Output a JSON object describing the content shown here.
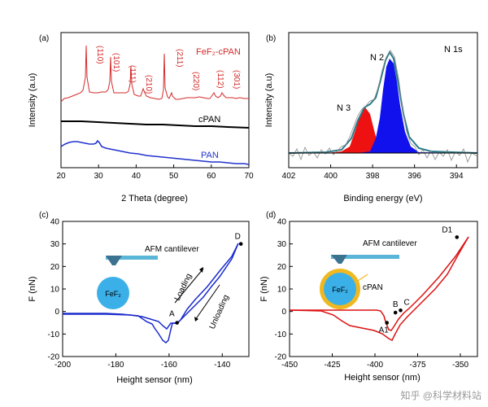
{
  "watermark": {
    "text": "知乎 @科学材料站"
  },
  "chart_data": [
    {
      "panel": "(a)",
      "type": "line",
      "xlabel": "2 Theta (degree)",
      "ylabel": "Intensity (a.u)",
      "xlim": [
        20,
        70
      ],
      "xticks": [
        "20",
        "30",
        "40",
        "50",
        "60",
        "70"
      ],
      "series": [
        {
          "name": "FeF2-cPAN",
          "label": "FeF₂-cPAN",
          "color": "#d42a2a"
        },
        {
          "name": "cPAN",
          "label": "cPAN",
          "color": "#000000"
        },
        {
          "name": "PAN",
          "label": "PAN",
          "color": "#2233cc"
        }
      ],
      "peaks": [
        {
          "hkl": "(110)",
          "x": 26.7
        },
        {
          "hkl": "(101)",
          "x": 33.2
        },
        {
          "hkl": "(111)",
          "x": 38.4
        },
        {
          "hkl": "(210)",
          "x": 43.6
        },
        {
          "hkl": "(211)",
          "x": 51.8
        },
        {
          "hkl": "(220)",
          "x": 55.2
        },
        {
          "hkl": "(112)",
          "x": 62.3
        },
        {
          "hkl": "(301)",
          "x": 65.9
        }
      ]
    },
    {
      "panel": "(b)",
      "type": "area",
      "title": "N 1s",
      "xlabel": "Binding energy (eV)",
      "ylabel": "Intensity (a.u)",
      "xlim": [
        402,
        393
      ],
      "xticks": [
        "402",
        "400",
        "398",
        "396",
        "394"
      ],
      "components": [
        {
          "name": "N 3",
          "center": 398.4,
          "color": "#ee1111"
        },
        {
          "name": "N 2",
          "center": 397.1,
          "color": "#1111ee"
        }
      ]
    },
    {
      "panel": "(c)",
      "type": "line",
      "xlabel": "Height sensor (nm)",
      "ylabel": "F (nN)",
      "xlim": [
        -200,
        -130
      ],
      "ylim": [
        -20,
        40
      ],
      "xticks": [
        "-200",
        "-180",
        "-160",
        "-140"
      ],
      "yticks": [
        "40",
        "30",
        "20",
        "10",
        "0",
        "-10",
        "-20"
      ],
      "points": [
        {
          "label": "A",
          "x": -157,
          "y": -5
        },
        {
          "label": "D",
          "x": -133,
          "y": 30
        }
      ],
      "annotations": [
        "AFM cantilever",
        "FeF₂",
        "Loading",
        "Unloading"
      ],
      "color": "#1a2bcc"
    },
    {
      "panel": "(d)",
      "type": "line",
      "xlabel": "Height sensor (nm)",
      "ylabel": "F (nN)",
      "xlim": [
        -450,
        -340
      ],
      "ylim": [
        -20,
        40
      ],
      "xticks": [
        "-450",
        "-425",
        "-400",
        "-375",
        "-350"
      ],
      "yticks": [
        "40",
        "30",
        "20",
        "10",
        "0",
        "-10",
        "-20"
      ],
      "points": [
        {
          "label": "A1",
          "x": -393,
          "y": -5
        },
        {
          "label": "B",
          "x": -388,
          "y": -0.5
        },
        {
          "label": "C",
          "x": -385,
          "y": 0.5
        },
        {
          "label": "D1",
          "x": -352,
          "y": 33
        }
      ],
      "annotations": [
        "AFM cantilever",
        "FeF₂",
        "cPAN"
      ],
      "color": "#dd1111"
    }
  ]
}
